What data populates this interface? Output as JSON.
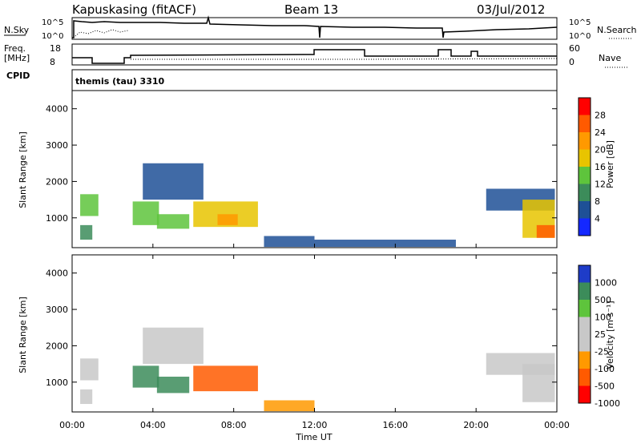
{
  "header": {
    "station": "Kapuskasing (fitACF)",
    "beam": "Beam 13",
    "date": "03/Jul/2012"
  },
  "top_panels": {
    "nsky_label": "N.Sky",
    "nsky_ticks": [
      "10^5",
      "10^0"
    ],
    "nsearch_label": "N.Search",
    "nsearch_ticks": [
      "10^5",
      "10^0"
    ],
    "freq_label_1": "Freq.",
    "freq_label_2": "[MHz]",
    "freq_ticks": [
      "18",
      "8"
    ],
    "nave_label": "Nave",
    "nave_ticks": [
      "60",
      "0"
    ],
    "cpid_label": "CPID",
    "cpid_value": "themis (tau) 3310"
  },
  "x_axis": {
    "label": "Time UT",
    "ticks": [
      "00:00",
      "04:00",
      "08:00",
      "12:00",
      "16:00",
      "20:00",
      "00:00"
    ]
  },
  "power_panel": {
    "ylabel": "Slant Range [km]",
    "yticks": [
      "1000",
      "2000",
      "3000",
      "4000"
    ],
    "colorbar_label": "Power [dB]",
    "colorbar_ticks": [
      "28",
      "24",
      "20",
      "16",
      "12",
      "8",
      "4"
    ],
    "colors": [
      "#ff0000",
      "#ff5a00",
      "#ff9900",
      "#e8c400",
      "#5ec43c",
      "#3c8c5a",
      "#1e5096",
      "#1428ff"
    ]
  },
  "velocity_panel": {
    "ylabel": "Slant Range [km]",
    "yticks": [
      "1000",
      "2000",
      "3000",
      "4000"
    ],
    "colorbar_label": "Velocity [m s⁻¹]",
    "colorbar_ticks": [
      "1000",
      "500",
      "100",
      "25",
      "-25",
      "-100",
      "-500",
      "-1000"
    ],
    "colors": [
      "#1e3cc8",
      "#3c8c5a",
      "#5ec43c",
      "#c8c8c8",
      "#c8c8c8",
      "#ff9900",
      "#ff5a00",
      "#ff0000"
    ]
  },
  "chart_data": [
    {
      "type": "heatmap",
      "name": "Power",
      "x_range_hours": [
        0,
        24
      ],
      "y_range_km": [
        180,
        4500
      ],
      "value_range_db": [
        0,
        32
      ],
      "regions": [
        {
          "t": [
            0.4,
            1.3
          ],
          "r": [
            1050,
            1650
          ],
          "v": 14
        },
        {
          "t": [
            0.4,
            1.0
          ],
          "r": [
            400,
            800
          ],
          "v": 10
        },
        {
          "t": [
            3.0,
            4.3
          ],
          "r": [
            800,
            1450
          ],
          "v": 16
        },
        {
          "t": [
            3.5,
            6.5
          ],
          "r": [
            1500,
            2500
          ],
          "v": 8
        },
        {
          "t": [
            4.2,
            5.8
          ],
          "r": [
            700,
            1100
          ],
          "v": 14
        },
        {
          "t": [
            6.0,
            9.2
          ],
          "r": [
            750,
            1450
          ],
          "v": 18
        },
        {
          "t": [
            7.2,
            8.2
          ],
          "r": [
            800,
            1100
          ],
          "v": 24
        },
        {
          "t": [
            9.5,
            12.0
          ],
          "r": [
            200,
            500
          ],
          "v": 6
        },
        {
          "t": [
            12.0,
            19.0
          ],
          "r": [
            200,
            400
          ],
          "v": 6
        },
        {
          "t": [
            20.5,
            23.9
          ],
          "r": [
            1200,
            1800
          ],
          "v": 8
        },
        {
          "t": [
            22.3,
            23.9
          ],
          "r": [
            450,
            1500
          ],
          "v": 18
        },
        {
          "t": [
            23.0,
            23.9
          ],
          "r": [
            450,
            800
          ],
          "v": 26
        }
      ]
    },
    {
      "type": "heatmap",
      "name": "Velocity",
      "x_range_hours": [
        0,
        24
      ],
      "y_range_km": [
        180,
        4500
      ],
      "value_range_ms": [
        -1000,
        1000
      ],
      "regions": [
        {
          "t": [
            0.4,
            1.3
          ],
          "r": [
            1050,
            1650
          ],
          "v": 0
        },
        {
          "t": [
            0.4,
            1.0
          ],
          "r": [
            400,
            800
          ],
          "v": 0
        },
        {
          "t": [
            3.0,
            4.3
          ],
          "r": [
            850,
            1450
          ],
          "v": 200
        },
        {
          "t": [
            3.5,
            6.5
          ],
          "r": [
            1500,
            2500
          ],
          "v": 0
        },
        {
          "t": [
            4.2,
            5.8
          ],
          "r": [
            700,
            1150
          ],
          "v": 200
        },
        {
          "t": [
            6.0,
            9.2
          ],
          "r": [
            750,
            1450
          ],
          "v": -150
        },
        {
          "t": [
            9.5,
            12.0
          ],
          "r": [
            200,
            500
          ],
          "v": -100
        },
        {
          "t": [
            20.5,
            23.9
          ],
          "r": [
            1200,
            1800
          ],
          "v": 0
        },
        {
          "t": [
            22.3,
            23.9
          ],
          "r": [
            450,
            1500
          ],
          "v": 0
        }
      ]
    }
  ]
}
